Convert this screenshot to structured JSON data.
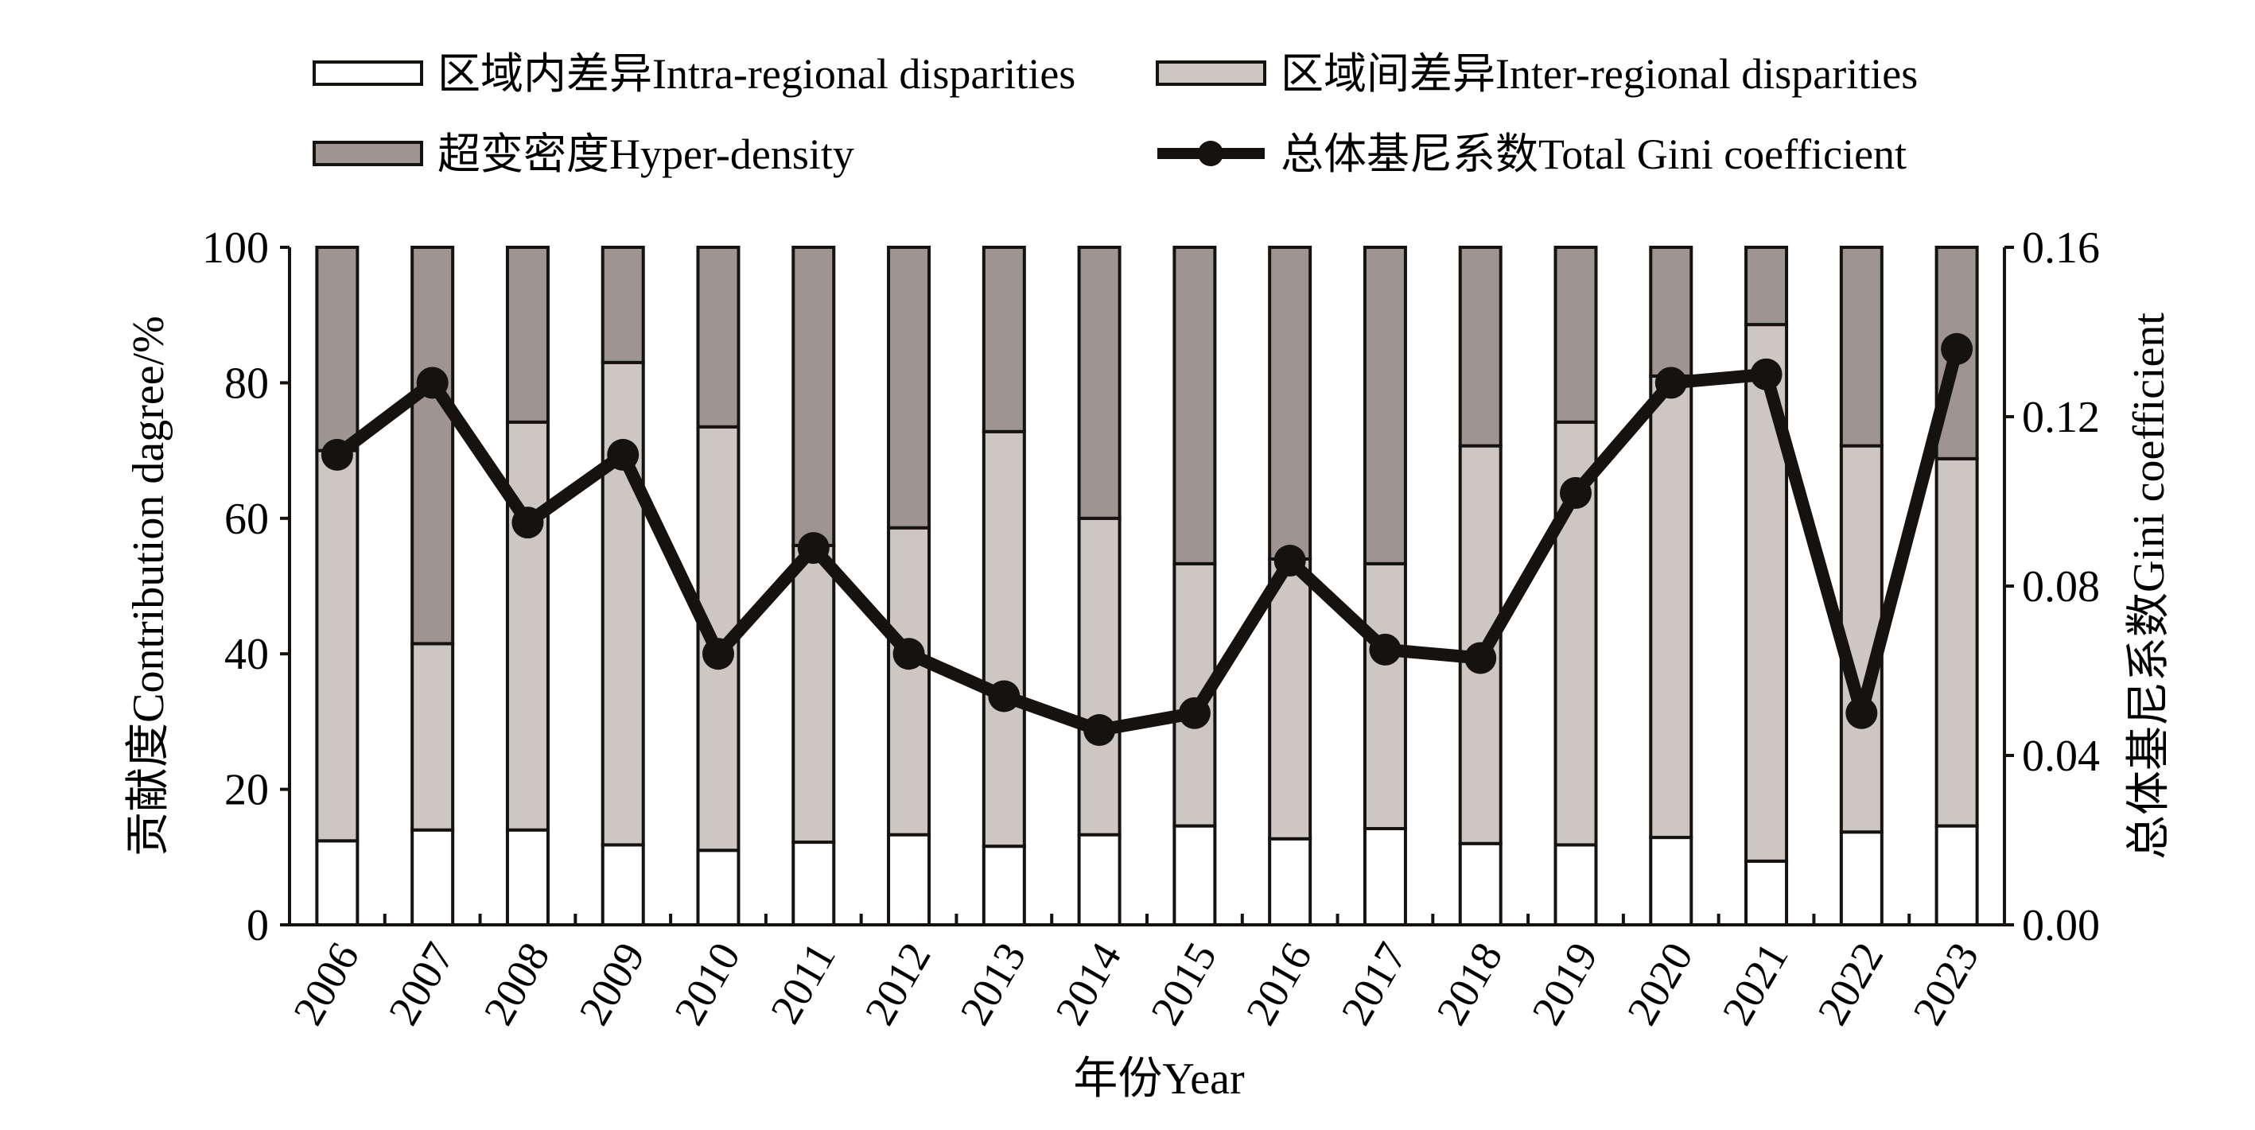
{
  "chart_data": {
    "type": "bar",
    "stacked": true,
    "xlabel": "年份Year",
    "ylabel": "贡献度Contribution dagree/%",
    "y2label": "总体基尼系数Gini coefficient",
    "ylim": [
      0,
      100
    ],
    "y2lim": [
      0,
      0.16
    ],
    "yticks": [
      "0",
      "20",
      "40",
      "60",
      "80",
      "100"
    ],
    "y2ticks": [
      "0.00",
      "0.04",
      "0.08",
      "0.12",
      "0.16"
    ],
    "categories": [
      "2006",
      "2007",
      "2008",
      "2009",
      "2010",
      "2011",
      "2012",
      "2013",
      "2014",
      "2015",
      "2016",
      "2017",
      "2018",
      "2019",
      "2020",
      "2021",
      "2022",
      "2023"
    ],
    "series": [
      {
        "name": "区域内差异Intra-regional disparities",
        "color": "#ffffff",
        "values": [
          12.4,
          14.0,
          14.0,
          11.8,
          11.0,
          12.2,
          13.3,
          11.6,
          13.3,
          14.6,
          12.7,
          14.2,
          12.0,
          11.8,
          12.9,
          9.4,
          13.7,
          14.6
        ]
      },
      {
        "name": "区域间差异Inter-regional disparities",
        "color": "#cdc7c4",
        "values": [
          57.6,
          27.5,
          60.2,
          71.2,
          62.5,
          43.8,
          45.3,
          61.2,
          46.7,
          38.7,
          41.3,
          39.1,
          58.7,
          62.4,
          68.1,
          79.2,
          57.0,
          54.2
        ]
      },
      {
        "name": "超变密度Hyper-density",
        "color": "#9e9592",
        "values": [
          30.0,
          58.5,
          25.8,
          17.0,
          26.5,
          44.0,
          41.4,
          27.2,
          40.0,
          46.7,
          46.0,
          46.7,
          29.3,
          25.8,
          19.0,
          11.4,
          29.3,
          31.2
        ]
      }
    ],
    "line": {
      "name": "总体基尼系数Total Gini coefficient",
      "axis": "right",
      "color": "#151210",
      "values": [
        0.111,
        0.128,
        0.095,
        0.111,
        0.064,
        0.089,
        0.064,
        0.054,
        0.046,
        0.05,
        0.086,
        0.065,
        0.063,
        0.102,
        0.128,
        0.13,
        0.05,
        0.136
      ]
    },
    "legend": "top",
    "grid": false
  }
}
